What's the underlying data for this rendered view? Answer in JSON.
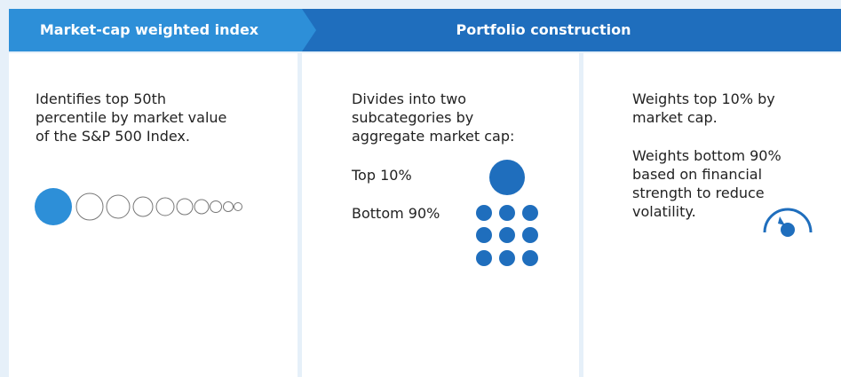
{
  "header": {
    "left_title": "Market-cap weighted index",
    "right_title": "Portfolio construction"
  },
  "panels": [
    {
      "lines": [
        "Identifies top 50th",
        "percentile by market value",
        "of the S&P 500 Index."
      ]
    },
    {
      "lines": [
        "Divides into two",
        "subcategories by",
        "aggregate market cap:"
      ],
      "top_label": "Top 10%",
      "bottom_label": "Bottom 90%"
    },
    {
      "lines": [
        "Weights top 10% by",
        "market cap."
      ],
      "lines2": [
        "Weights bottom 90%",
        "based on financial",
        "strength to reduce",
        "volatility."
      ]
    }
  ]
}
